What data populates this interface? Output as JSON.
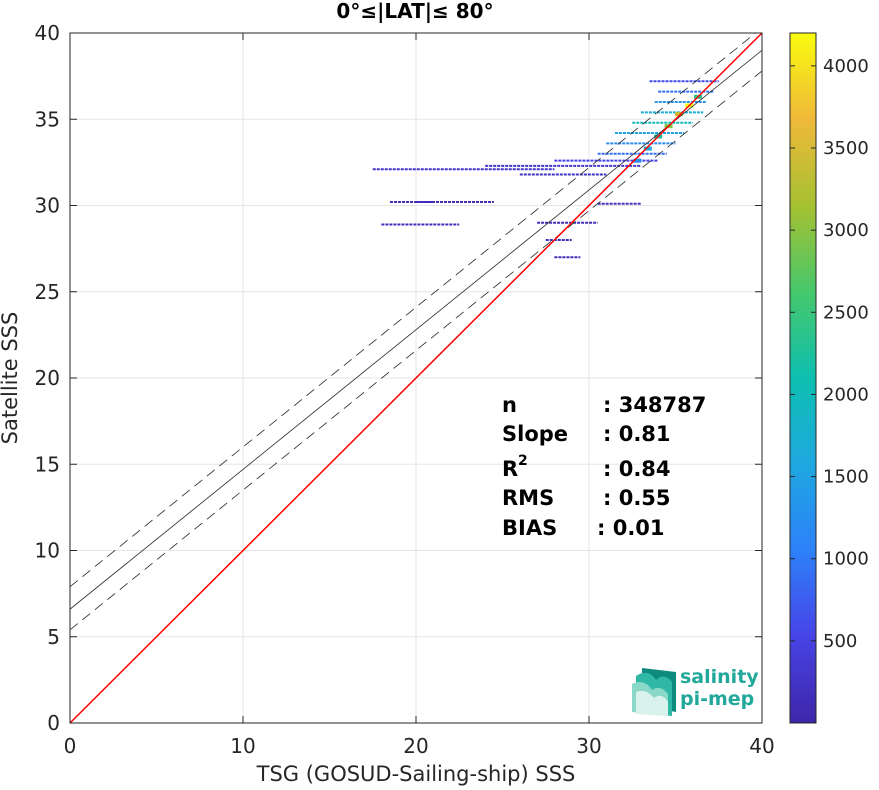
{
  "chart_data": {
    "type": "heatmap",
    "title": "0°≤|LAT|≤ 80°",
    "xlabel": "TSG (GOSUD-Sailing-ship) SSS",
    "ylabel": "Satellite SSS",
    "xlim": [
      0,
      40
    ],
    "ylim": [
      0,
      40
    ],
    "xticks": [
      "0",
      "10",
      "20",
      "30",
      "40"
    ],
    "yticks": [
      "0",
      "5",
      "10",
      "15",
      "20",
      "25",
      "30",
      "35",
      "40"
    ],
    "grid": true,
    "colorbar": {
      "range": [
        0,
        4200
      ],
      "ticks": [
        "500",
        "1000",
        "1500",
        "2000",
        "2500",
        "3000",
        "3500",
        "4000"
      ],
      "colormap": "parula"
    },
    "lines": {
      "identity": {
        "slope": 1.0,
        "intercept": 0.0,
        "color": "#ff0000"
      },
      "fit": {
        "slope": 0.81,
        "intercept": 6.6,
        "color": "#000000"
      },
      "fit_upper": {
        "slope": 0.81,
        "intercept": 7.9,
        "style": "dashed"
      },
      "fit_lower": {
        "slope": 0.81,
        "intercept": 5.4,
        "style": "dashed"
      }
    },
    "density_segments": [
      {
        "x1": 33.5,
        "x2": 37.5,
        "y": 37.2,
        "c": 600
      },
      {
        "x1": 34.0,
        "x2": 37.2,
        "y": 36.6,
        "c": 900
      },
      {
        "x1": 33.8,
        "x2": 36.8,
        "y": 36.0,
        "c": 1300
      },
      {
        "x1": 33.0,
        "x2": 36.6,
        "y": 35.4,
        "c": 1700
      },
      {
        "x1": 32.5,
        "x2": 36.0,
        "y": 34.8,
        "c": 2000
      },
      {
        "x1": 31.5,
        "x2": 35.5,
        "y": 34.2,
        "c": 1500
      },
      {
        "x1": 31.0,
        "x2": 35.0,
        "y": 33.6,
        "c": 1200
      },
      {
        "x1": 30.5,
        "x2": 34.5,
        "y": 33.0,
        "c": 900
      },
      {
        "x1": 28.0,
        "x2": 34.0,
        "y": 32.6,
        "c": 500
      },
      {
        "x1": 24.0,
        "x2": 33.0,
        "y": 32.3,
        "c": 300
      },
      {
        "x1": 17.5,
        "x2": 28.0,
        "y": 32.1,
        "c": 250
      },
      {
        "x1": 26.0,
        "x2": 31.0,
        "y": 31.8,
        "c": 250
      },
      {
        "x1": 20.0,
        "x2": 24.5,
        "y": 30.2,
        "c": 150
      },
      {
        "x1": 18.5,
        "x2": 21.0,
        "y": 30.2,
        "c": 150
      },
      {
        "x1": 30.5,
        "x2": 33.0,
        "y": 30.1,
        "c": 150
      },
      {
        "x1": 18.0,
        "x2": 21.0,
        "y": 28.9,
        "c": 150
      },
      {
        "x1": 21.0,
        "x2": 22.5,
        "y": 28.9,
        "c": 150
      },
      {
        "x1": 27.0,
        "x2": 30.5,
        "y": 29.0,
        "c": 150
      },
      {
        "x1": 27.5,
        "x2": 29.0,
        "y": 28.0,
        "c": 150
      },
      {
        "x1": 28.0,
        "x2": 29.5,
        "y": 27.0,
        "c": 150
      }
    ],
    "density_peak": [
      {
        "x": 35.8,
        "y": 35.8,
        "c": 4200
      },
      {
        "x": 35.2,
        "y": 35.3,
        "c": 3400
      },
      {
        "x": 34.6,
        "y": 34.6,
        "c": 3000
      },
      {
        "x": 36.3,
        "y": 36.3,
        "c": 2400
      },
      {
        "x": 34.0,
        "y": 34.0,
        "c": 2200
      },
      {
        "x": 33.4,
        "y": 33.3,
        "c": 1600
      },
      {
        "x": 32.8,
        "y": 32.6,
        "c": 1200
      }
    ]
  },
  "stats": {
    "n_label": "n",
    "n_value": ": 348787",
    "slope_label": "Slope",
    "slope_value": ": 0.81",
    "r2_label": "R",
    "r2_sup": "2",
    "r2_value": ": 0.84",
    "rms_label": "RMS",
    "rms_value": ": 0.55",
    "bias_label": "BIAS",
    "bias_value": ": 0.01"
  },
  "logo": {
    "line1": "salinity",
    "line2": "pi-mep"
  }
}
